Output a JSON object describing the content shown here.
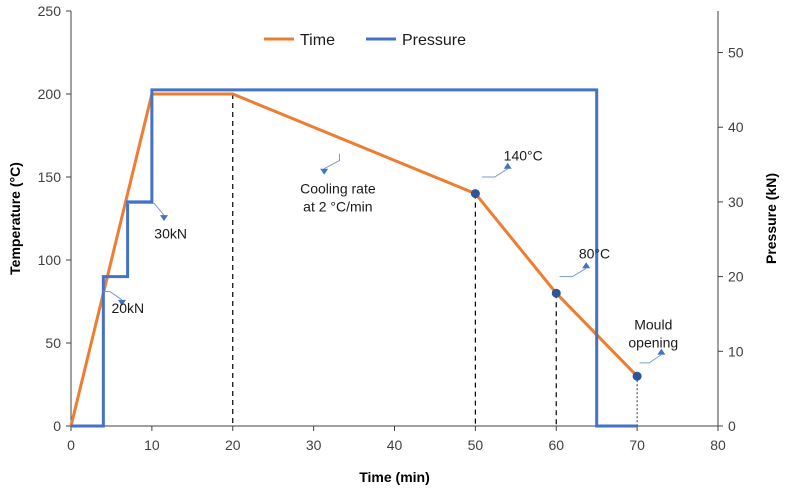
{
  "chart_data": {
    "type": "line",
    "title": "",
    "xlabel": "Time (min)",
    "ylabel_left": "Temperature (°C)",
    "ylabel_right": "Pressure (kN)",
    "xlim": [
      0,
      80
    ],
    "ylim_left": [
      0,
      250
    ],
    "ylim_right": [
      0,
      55.56
    ],
    "x_ticks": [
      0,
      10,
      20,
      30,
      40,
      50,
      60,
      70,
      80
    ],
    "y_left_ticks": [
      0,
      50,
      100,
      150,
      200,
      250
    ],
    "y_right_ticks": [
      0,
      10,
      20,
      30,
      40,
      50
    ],
    "grid": false,
    "legend_position": "top-center",
    "series": [
      {
        "name": "Time",
        "axis": "left",
        "color": "#ED7D31",
        "x": [
          0,
          10,
          20,
          50,
          60,
          70
        ],
        "y": [
          0,
          200,
          200,
          140,
          80,
          30
        ]
      },
      {
        "name": "Pressure",
        "axis": "right",
        "color": "#4472C4",
        "step": true,
        "x": [
          0,
          4,
          4,
          7,
          7,
          10,
          10,
          65,
          65,
          70
        ],
        "y": [
          0,
          0,
          20,
          20,
          30,
          30,
          45,
          45,
          0,
          0
        ]
      }
    ],
    "vertical_reference_lines": [
      20,
      50,
      60,
      70
    ],
    "markers": [
      {
        "x": 50,
        "y": 140
      },
      {
        "x": 60,
        "y": 80
      },
      {
        "x": 70,
        "y": 30
      }
    ],
    "annotations": [
      {
        "text": [
          "20kN"
        ],
        "x": 5,
        "y": 68
      },
      {
        "text": [
          "30kN"
        ],
        "x": 10.3,
        "y": 113
      },
      {
        "text": [
          "Cooling rate",
          "at 2 °C/min"
        ],
        "x": 33,
        "y": 140
      },
      {
        "text": [
          "140°C"
        ],
        "x": 53.5,
        "y": 160
      },
      {
        "text": [
          "80°C"
        ],
        "x": 62.8,
        "y": 101
      },
      {
        "text": [
          "Mould",
          "opening"
        ],
        "x": 72,
        "y": 58
      }
    ]
  }
}
